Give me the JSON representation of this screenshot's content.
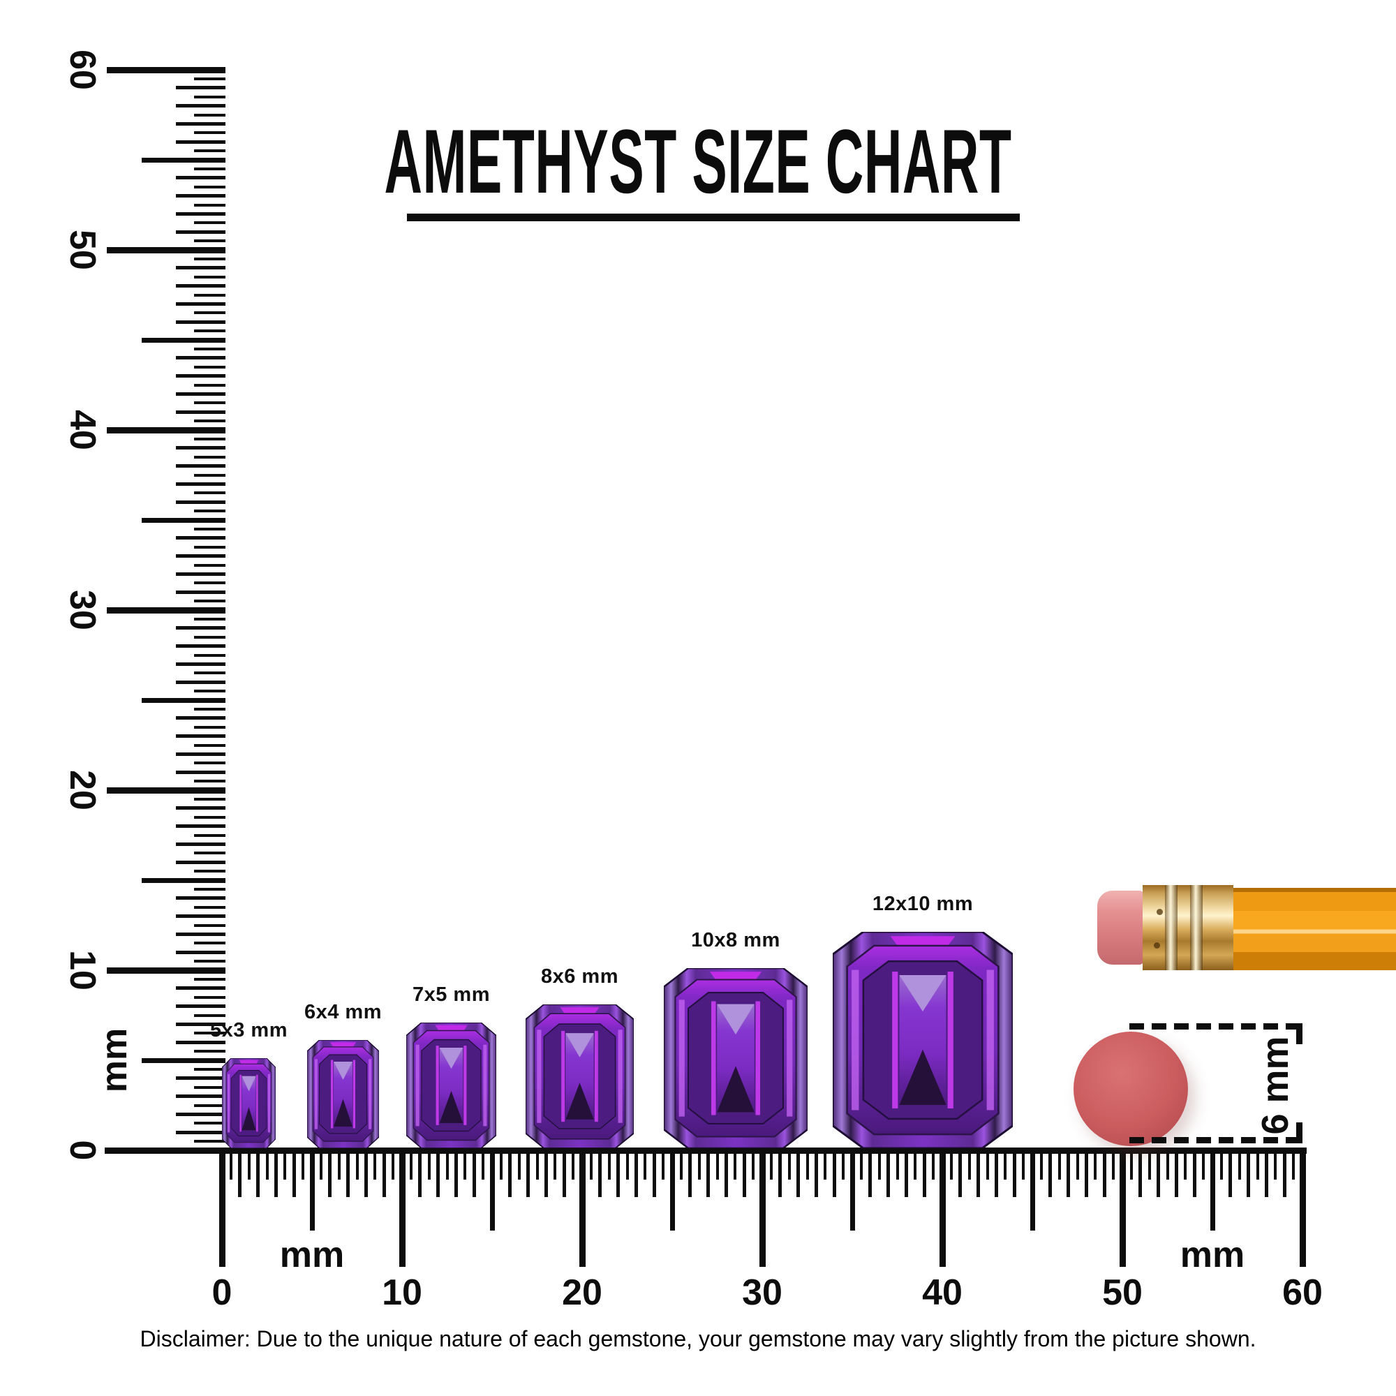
{
  "title": {
    "text": "AMETHYST SIZE CHART"
  },
  "rulers": {
    "vertical": {
      "labels": [
        "60",
        "50",
        "40",
        "30",
        "20",
        "10",
        "0"
      ],
      "unit": "mm",
      "range_mm": [
        0,
        60
      ],
      "tick_step_mm": 0.5
    },
    "horizontal": {
      "labels": [
        "0",
        "10",
        "20",
        "30",
        "40",
        "50",
        "60"
      ],
      "unit_left": "mm",
      "unit_right": "mm",
      "range_mm": [
        0,
        60
      ],
      "tick_step_mm": 0.5
    }
  },
  "gems": [
    {
      "label": "5x3 mm",
      "size_mm": {
        "length": 5,
        "width": 3
      },
      "ruler_position_mm": [
        0,
        3
      ]
    },
    {
      "label": "6x4 mm",
      "size_mm": {
        "length": 6,
        "width": 4
      },
      "ruler_position_mm": [
        4.7,
        8.7
      ]
    },
    {
      "label": "7x5 mm",
      "size_mm": {
        "length": 7,
        "width": 5
      },
      "ruler_position_mm": [
        10.2,
        15.2
      ]
    },
    {
      "label": "8x6 mm",
      "size_mm": {
        "length": 8,
        "width": 6
      },
      "ruler_position_mm": [
        16.9,
        22.9
      ]
    },
    {
      "label": "10x8 mm",
      "size_mm": {
        "length": 10,
        "width": 8
      },
      "ruler_position_mm": [
        24.5,
        32.5
      ]
    },
    {
      "label": "12x10 mm",
      "size_mm": {
        "length": 12,
        "width": 10
      },
      "ruler_position_mm": [
        33.9,
        43.9
      ]
    }
  ],
  "reference_objects": {
    "pencil": {
      "description": "pencil-with-eraser",
      "eraser_color": "#db8384",
      "ferrule_color": "#e7c078",
      "body_color": "#f5a31f"
    },
    "coin": {
      "description": "round-red-disc",
      "diameter_label": "6 mm",
      "color": "#cb5c5e"
    }
  },
  "disclaimer": "Disclaimer: Due to the unique nature of each gemstone, your gemstone may vary slightly from the picture shown.",
  "colors": {
    "gem_magenta": "#c12be8",
    "gem_purple": "#7c33c4",
    "gem_dark": "#2f1b48",
    "ink": "#0d0d0d"
  },
  "chart_data": {
    "type": "table",
    "title": "AMETHYST SIZE CHART",
    "columns": [
      "size_label",
      "length_mm",
      "width_mm"
    ],
    "rows": [
      [
        "5x3 mm",
        5,
        3
      ],
      [
        "6x4 mm",
        6,
        4
      ],
      [
        "7x5 mm",
        7,
        5
      ],
      [
        "8x6 mm",
        8,
        6
      ],
      [
        "10x8 mm",
        10,
        8
      ],
      [
        "12x10 mm",
        12,
        10
      ]
    ],
    "axis": {
      "unit": "mm",
      "ruler_range_mm": [
        0,
        60
      ],
      "tick_step_mm": 0.5
    }
  }
}
